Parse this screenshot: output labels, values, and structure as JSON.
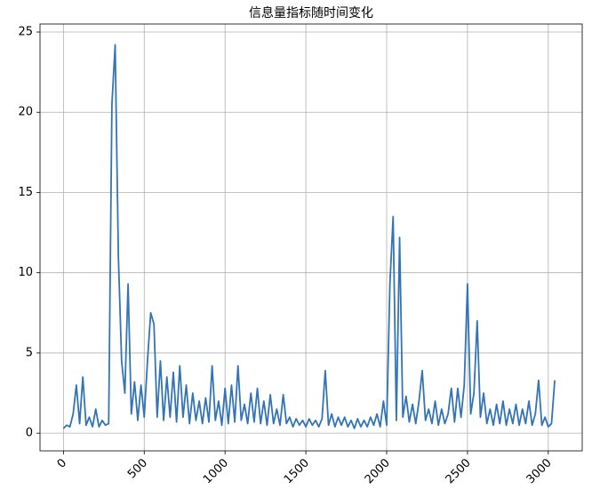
{
  "chart_data": {
    "type": "line",
    "title": "信息量指标随时间变化",
    "x": [
      0,
      20,
      40,
      60,
      80,
      100,
      120,
      140,
      160,
      180,
      200,
      220,
      240,
      260,
      280,
      300,
      320,
      340,
      360,
      380,
      400,
      420,
      440,
      460,
      480,
      500,
      520,
      540,
      560,
      580,
      600,
      620,
      640,
      660,
      680,
      700,
      720,
      740,
      760,
      780,
      800,
      820,
      840,
      860,
      880,
      900,
      920,
      940,
      960,
      980,
      1000,
      1020,
      1040,
      1060,
      1080,
      1100,
      1120,
      1140,
      1160,
      1180,
      1200,
      1220,
      1240,
      1260,
      1280,
      1300,
      1320,
      1340,
      1360,
      1380,
      1400,
      1420,
      1440,
      1460,
      1480,
      1500,
      1520,
      1540,
      1560,
      1580,
      1600,
      1620,
      1640,
      1660,
      1680,
      1700,
      1720,
      1740,
      1760,
      1780,
      1800,
      1820,
      1840,
      1860,
      1880,
      1900,
      1920,
      1940,
      1960,
      1980,
      2000,
      2020,
      2040,
      2060,
      2080,
      2100,
      2120,
      2140,
      2160,
      2180,
      2200,
      2220,
      2240,
      2260,
      2280,
      2300,
      2320,
      2340,
      2360,
      2380,
      2400,
      2420,
      2440,
      2460,
      2480,
      2500,
      2520,
      2540,
      2560,
      2580,
      2600,
      2620,
      2640,
      2660,
      2680,
      2700,
      2720,
      2740,
      2760,
      2780,
      2800,
      2820,
      2840,
      2860,
      2880,
      2900,
      2920,
      2940,
      2960,
      2980,
      3000,
      3020,
      3040
    ],
    "series": [
      {
        "color": "#3274b5",
        "values": [
          0.3,
          0.5,
          0.4,
          1.2,
          3.0,
          0.6,
          3.5,
          0.5,
          1.0,
          0.4,
          1.5,
          0.4,
          0.8,
          0.5,
          0.6,
          20.5,
          24.2,
          11.0,
          4.5,
          2.5,
          9.3,
          1.2,
          3.2,
          0.8,
          3.0,
          1.0,
          4.5,
          7.5,
          6.8,
          1.0,
          4.5,
          0.8,
          3.5,
          1.0,
          3.8,
          0.7,
          4.2,
          1.0,
          3.0,
          0.6,
          2.5,
          0.8,
          2.0,
          0.6,
          2.2,
          0.7,
          4.2,
          0.8,
          2.0,
          0.5,
          2.8,
          0.6,
          3.0,
          0.7,
          4.2,
          0.8,
          1.8,
          0.6,
          2.5,
          0.7,
          2.8,
          0.6,
          2.0,
          0.5,
          2.4,
          0.6,
          1.5,
          0.5,
          2.4,
          0.6,
          1.0,
          0.4,
          0.9,
          0.5,
          0.8,
          0.4,
          0.9,
          0.5,
          0.8,
          0.4,
          0.9,
          3.9,
          0.5,
          1.2,
          0.4,
          1.0,
          0.5,
          1.0,
          0.4,
          0.8,
          0.3,
          0.9,
          0.4,
          0.8,
          0.4,
          1.0,
          0.5,
          1.2,
          0.4,
          2.0,
          0.5,
          9.3,
          13.5,
          0.8,
          12.2,
          1.0,
          2.3,
          0.7,
          1.8,
          0.6,
          2.0,
          3.9,
          0.8,
          1.5,
          0.6,
          2.0,
          0.5,
          1.5,
          0.6,
          1.2,
          2.8,
          0.7,
          2.8,
          1.0,
          3.0,
          9.3,
          1.2,
          2.5,
          7.0,
          1.0,
          2.5,
          0.6,
          1.5,
          0.5,
          1.8,
          0.6,
          2.0,
          0.5,
          1.5,
          0.6,
          1.8,
          0.5,
          1.5,
          0.6,
          2.0,
          0.5,
          1.2,
          3.3,
          0.5,
          1.0,
          0.4,
          0.6,
          3.3
        ]
      }
    ],
    "xlim": [
      -145,
      3210
    ],
    "ylim": [
      -1.1,
      25.5
    ],
    "xticks": [
      0,
      500,
      1000,
      1500,
      2000,
      2500,
      3000
    ],
    "yticks": [
      0,
      5,
      10,
      15,
      20,
      25
    ],
    "grid": true
  }
}
